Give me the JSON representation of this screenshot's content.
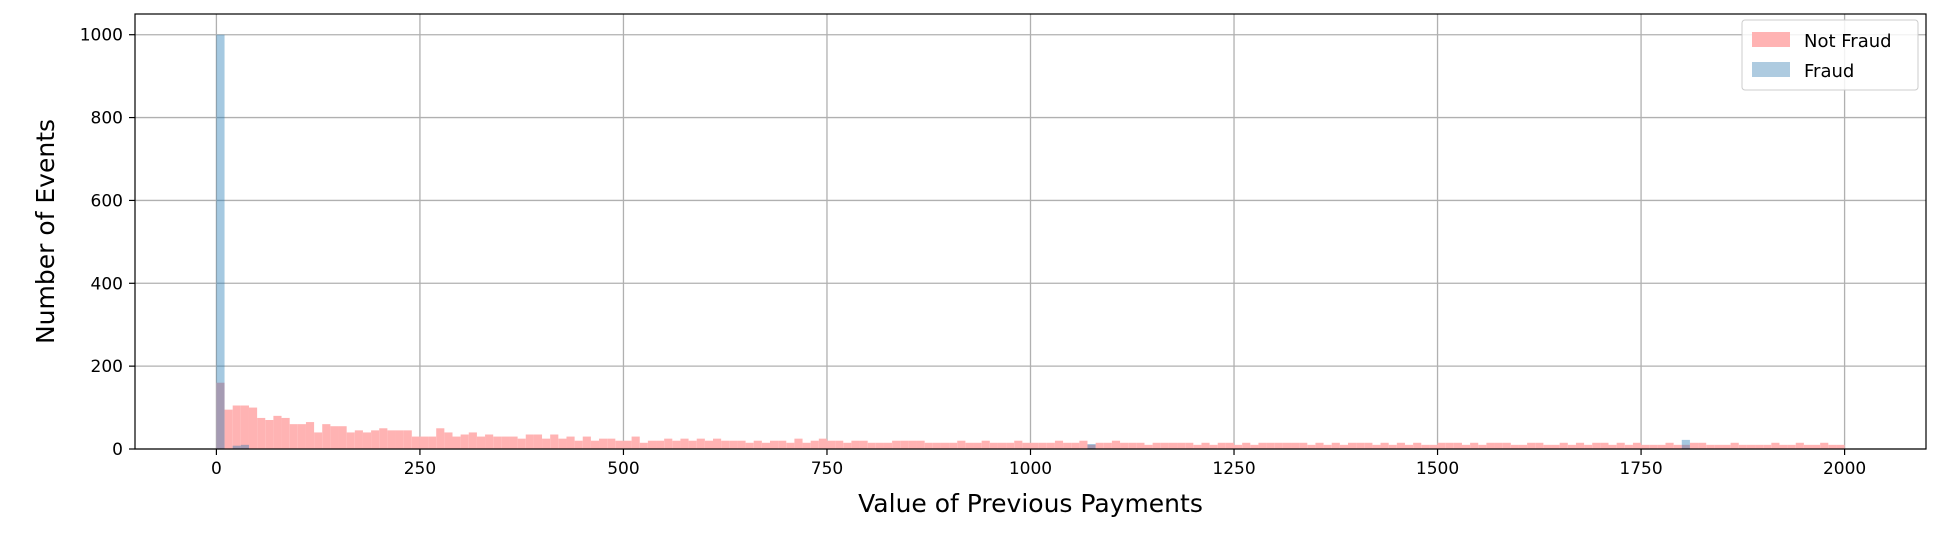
{
  "chart_data": {
    "type": "bar",
    "title": "",
    "xlabel": "Value of Previous Payments",
    "ylabel": "Number of Events",
    "xlim": [
      -100,
      2100
    ],
    "ylim": [
      0,
      1050
    ],
    "x_ticks": [
      0,
      250,
      500,
      750,
      1000,
      1250,
      1500,
      1750,
      2000
    ],
    "y_ticks": [
      0,
      200,
      400,
      600,
      800,
      1000
    ],
    "grid": true,
    "legend_placement": "top-right",
    "bin_width": 10,
    "series": [
      {
        "name": "Not Fraud",
        "color": "#ffb3b3",
        "bin_start": 0,
        "values": [
          160,
          95,
          105,
          105,
          100,
          75,
          70,
          80,
          75,
          60,
          60,
          65,
          40,
          60,
          55,
          55,
          40,
          45,
          40,
          45,
          50,
          45,
          45,
          45,
          30,
          30,
          30,
          50,
          40,
          30,
          35,
          40,
          30,
          35,
          30,
          30,
          30,
          25,
          35,
          35,
          25,
          35,
          25,
          30,
          20,
          30,
          20,
          25,
          25,
          20,
          20,
          30,
          15,
          20,
          20,
          25,
          20,
          25,
          20,
          25,
          20,
          25,
          20,
          20,
          20,
          15,
          20,
          15,
          20,
          20,
          15,
          25,
          15,
          20,
          25,
          20,
          20,
          15,
          20,
          20,
          15,
          15,
          15,
          20,
          20,
          20,
          20,
          15,
          15,
          15,
          15,
          20,
          15,
          15,
          20,
          15,
          15,
          15,
          20,
          15,
          15,
          15,
          15,
          20,
          15,
          15,
          20,
          10,
          15,
          15,
          20,
          15,
          15,
          15,
          10,
          15,
          15,
          15,
          15,
          15,
          10,
          15,
          10,
          15,
          15,
          10,
          15,
          10,
          15,
          15,
          15,
          15,
          15,
          15,
          10,
          15,
          10,
          15,
          10,
          15,
          15,
          15,
          10,
          15,
          10,
          15,
          10,
          15,
          10,
          10,
          15,
          15,
          15,
          10,
          15,
          10,
          15,
          15,
          15,
          10,
          10,
          15,
          15,
          10,
          10,
          15,
          10,
          15,
          10,
          15,
          15,
          10,
          15,
          10,
          15,
          10,
          10,
          10,
          15,
          10,
          10,
          15,
          15,
          10,
          10,
          10,
          15,
          10,
          10,
          10,
          10,
          15,
          10,
          10,
          15,
          10,
          10,
          15,
          10,
          10
        ]
      },
      {
        "name": "Fraud",
        "color": "#aecbe0",
        "bins": [
          {
            "x": 0,
            "value": 1000
          },
          {
            "x": 20,
            "value": 8
          },
          {
            "x": 30,
            "value": 10
          },
          {
            "x": 1070,
            "value": 12
          },
          {
            "x": 1800,
            "value": 22
          }
        ]
      }
    ]
  }
}
